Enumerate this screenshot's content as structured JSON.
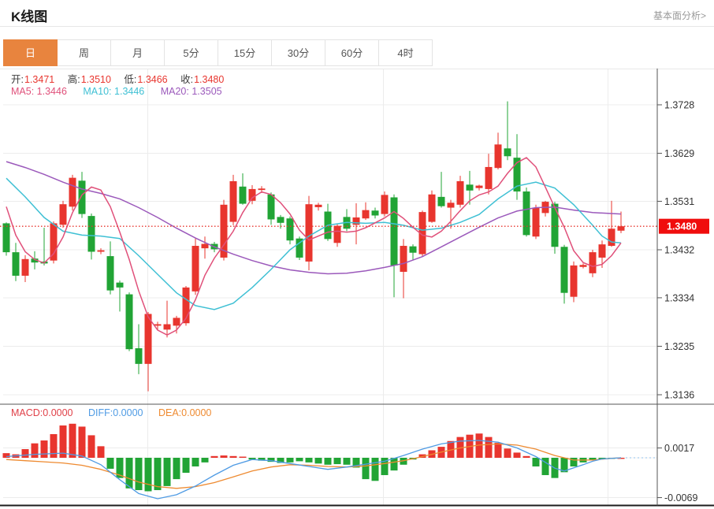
{
  "header": {
    "title": "K线图",
    "link": "基本面分析>"
  },
  "tabs": {
    "items": [
      {
        "label": "日",
        "selected": true
      },
      {
        "label": "周",
        "selected": false
      },
      {
        "label": "月",
        "selected": false
      },
      {
        "label": "5分",
        "selected": false
      },
      {
        "label": "15分",
        "selected": false
      },
      {
        "label": "30分",
        "selected": false
      },
      {
        "label": "60分",
        "selected": false
      },
      {
        "label": "4时",
        "selected": false
      }
    ]
  },
  "legend": {
    "ohlc": [
      {
        "label": "开:",
        "value": "1.3471"
      },
      {
        "label": "高:",
        "value": "1.3510"
      },
      {
        "label": "低:",
        "value": "1.3466"
      },
      {
        "label": "收:",
        "value": "1.3480"
      }
    ],
    "ma": [
      {
        "label": "MA5:",
        "value": "1.3446",
        "color": "#e0507a"
      },
      {
        "label": "MA10:",
        "value": "1.3446",
        "color": "#3fc0d4"
      },
      {
        "label": "MA20:",
        "value": "1.3505",
        "color": "#9b59bb"
      }
    ],
    "macd": [
      {
        "label": "MACD:",
        "value": "0.0000",
        "color": "#e04048"
      },
      {
        "label": "DIFF:",
        "value": "0.0000",
        "color": "#4f9be4"
      },
      {
        "label": "DEA:",
        "value": "0.0000",
        "color": "#ee8a30"
      }
    ]
  },
  "chart_data": {
    "type": "candlestick",
    "title": "K线图 (daily)",
    "legend_position": "top-left-overlay",
    "grid": true,
    "price_axis": {
      "side": "right",
      "ticks": [
        "1.3728",
        "1.3629",
        "1.3531",
        "1.3432",
        "1.3334",
        "1.3235",
        "1.3136"
      ],
      "tick_values": [
        1.3728,
        1.3629,
        1.3531,
        1.3432,
        1.3334,
        1.3235,
        1.3136
      ],
      "current_price": 1.348,
      "current_price_label": "1.3480"
    },
    "macd_axis": {
      "side": "right",
      "ticks": [
        "0.0017",
        "-0.0069"
      ],
      "tick_values": [
        0.0017,
        -0.0069
      ]
    },
    "candles": [
      [
        1.3486,
        1.3488,
        1.342,
        1.3427
      ],
      [
        1.3427,
        1.3446,
        1.3368,
        1.3379
      ],
      [
        1.3379,
        1.3421,
        1.3366,
        1.3413
      ],
      [
        1.3414,
        1.3429,
        1.3392,
        1.3406
      ],
      [
        1.3408,
        1.3477,
        1.34,
        1.3404
      ],
      [
        1.341,
        1.349,
        1.3404,
        1.3486
      ],
      [
        1.3483,
        1.3532,
        1.3477,
        1.3525
      ],
      [
        1.352,
        1.3585,
        1.3512,
        1.3579
      ],
      [
        1.3573,
        1.3591,
        1.3497,
        1.3505
      ],
      [
        1.3501,
        1.3506,
        1.3412,
        1.3428
      ],
      [
        1.3428,
        1.3435,
        1.3423,
        1.3431
      ],
      [
        1.3419,
        1.3449,
        1.3341,
        1.3349
      ],
      [
        1.3365,
        1.3369,
        1.3306,
        1.3355
      ],
      [
        1.3341,
        1.3345,
        1.3225,
        1.3229
      ],
      [
        1.3231,
        1.328,
        1.3178,
        1.3199
      ],
      [
        1.3199,
        1.3305,
        1.3143,
        1.3301
      ],
      [
        1.3277,
        1.3285,
        1.3268,
        1.328
      ],
      [
        1.3269,
        1.3328,
        1.3253,
        1.328
      ],
      [
        1.3277,
        1.3297,
        1.3261,
        1.3293
      ],
      [
        1.3282,
        1.3358,
        1.3277,
        1.3355
      ],
      [
        1.3347,
        1.3457,
        1.334,
        1.344
      ],
      [
        1.3435,
        1.3459,
        1.3414,
        1.3444
      ],
      [
        1.3444,
        1.3448,
        1.3427,
        1.3433
      ],
      [
        1.3416,
        1.3534,
        1.341,
        1.3524
      ],
      [
        1.3489,
        1.3585,
        1.3482,
        1.3572
      ],
      [
        1.3561,
        1.3588,
        1.3524,
        1.3526
      ],
      [
        1.3532,
        1.3564,
        1.3525,
        1.3556
      ],
      [
        1.3554,
        1.3562,
        1.3548,
        1.3557
      ],
      [
        1.3545,
        1.3549,
        1.3483,
        1.3494
      ],
      [
        1.3499,
        1.3503,
        1.3475,
        1.3487
      ],
      [
        1.3496,
        1.35,
        1.3443,
        1.3451
      ],
      [
        1.3455,
        1.3459,
        1.3411,
        1.3416
      ],
      [
        1.3408,
        1.3542,
        1.339,
        1.3525
      ],
      [
        1.3519,
        1.3528,
        1.3512,
        1.3524
      ],
      [
        1.351,
        1.3526,
        1.345,
        1.3454
      ],
      [
        1.3446,
        1.3485,
        1.3438,
        1.3481
      ],
      [
        1.3499,
        1.3515,
        1.347,
        1.3475
      ],
      [
        1.3483,
        1.3527,
        1.3443,
        1.3498
      ],
      [
        1.3496,
        1.3529,
        1.3493,
        1.3513
      ],
      [
        1.3512,
        1.3518,
        1.3496,
        1.3502
      ],
      [
        1.3505,
        1.3551,
        1.35,
        1.3544
      ],
      [
        1.3539,
        1.3545,
        1.3335,
        1.34
      ],
      [
        1.3387,
        1.3454,
        1.3333,
        1.344
      ],
      [
        1.3439,
        1.3443,
        1.3411,
        1.3426
      ],
      [
        1.3423,
        1.3512,
        1.3418,
        1.3509
      ],
      [
        1.3489,
        1.3553,
        1.3487,
        1.3545
      ],
      [
        1.354,
        1.3591,
        1.3518,
        1.3521
      ],
      [
        1.3518,
        1.3534,
        1.3475,
        1.3528
      ],
      [
        1.3524,
        1.3583,
        1.3518,
        1.3572
      ],
      [
        1.3565,
        1.3593,
        1.3524,
        1.3553
      ],
      [
        1.3558,
        1.3565,
        1.3553,
        1.3563
      ],
      [
        1.3556,
        1.3628,
        1.3545,
        1.3601
      ],
      [
        1.3599,
        1.3671,
        1.3596,
        1.3647
      ],
      [
        1.3639,
        1.3735,
        1.3615,
        1.3623
      ],
      [
        1.362,
        1.3668,
        1.3534,
        1.3551
      ],
      [
        1.3551,
        1.3559,
        1.3459,
        1.3462
      ],
      [
        1.3459,
        1.3524,
        1.3454,
        1.3518
      ],
      [
        1.3507,
        1.3532,
        1.35,
        1.353
      ],
      [
        1.3526,
        1.353,
        1.3424,
        1.3438
      ],
      [
        1.3438,
        1.3442,
        1.3322,
        1.3344
      ],
      [
        1.3336,
        1.3408,
        1.3325,
        1.34
      ],
      [
        1.3397,
        1.3404,
        1.3394,
        1.3401
      ],
      [
        1.3384,
        1.3432,
        1.3376,
        1.3427
      ],
      [
        1.3416,
        1.3451,
        1.3395,
        1.3443
      ],
      [
        1.344,
        1.3532,
        1.3438,
        1.3475
      ],
      [
        1.3471,
        1.351,
        1.3466,
        1.348
      ]
    ],
    "ma5_keypoints": [
      [
        0,
        1.352
      ],
      [
        1,
        1.3462
      ],
      [
        2,
        1.3428
      ],
      [
        3,
        1.3412
      ],
      [
        4,
        1.3405
      ],
      [
        5,
        1.3424
      ],
      [
        6,
        1.3458
      ],
      [
        7,
        1.3508
      ],
      [
        8,
        1.3544
      ],
      [
        9,
        1.356
      ],
      [
        10,
        1.3554
      ],
      [
        11,
        1.352
      ],
      [
        12,
        1.3468
      ],
      [
        13,
        1.3412
      ],
      [
        14,
        1.3348
      ],
      [
        15,
        1.3295
      ],
      [
        16,
        1.3268
      ],
      [
        17,
        1.3258
      ],
      [
        18,
        1.3268
      ],
      [
        19,
        1.3292
      ],
      [
        20,
        1.333
      ],
      [
        21,
        1.338
      ],
      [
        22,
        1.3415
      ],
      [
        23,
        1.3442
      ],
      [
        24,
        1.347
      ],
      [
        25,
        1.3508
      ],
      [
        26,
        1.3538
      ],
      [
        27,
        1.355
      ],
      [
        28,
        1.3545
      ],
      [
        29,
        1.3528
      ],
      [
        30,
        1.3505
      ],
      [
        31,
        1.3472
      ],
      [
        32,
        1.3452
      ],
      [
        33,
        1.346
      ],
      [
        34,
        1.3468
      ],
      [
        35,
        1.347
      ],
      [
        36,
        1.3468
      ],
      [
        37,
        1.347
      ],
      [
        38,
        1.3477
      ],
      [
        39,
        1.3487
      ],
      [
        40,
        1.3497
      ],
      [
        41,
        1.351
      ],
      [
        42,
        1.3496
      ],
      [
        43,
        1.3478
      ],
      [
        44,
        1.3462
      ],
      [
        45,
        1.3458
      ],
      [
        46,
        1.347
      ],
      [
        47,
        1.349
      ],
      [
        48,
        1.3512
      ],
      [
        49,
        1.3532
      ],
      [
        50,
        1.3544
      ],
      [
        51,
        1.355
      ],
      [
        52,
        1.3562
      ],
      [
        53,
        1.3588
      ],
      [
        54,
        1.361
      ],
      [
        55,
        1.362
      ],
      [
        56,
        1.3601
      ],
      [
        57,
        1.356
      ],
      [
        58,
        1.3518
      ],
      [
        59,
        1.3478
      ],
      [
        60,
        1.343
      ],
      [
        61,
        1.3406
      ],
      [
        62,
        1.3398
      ],
      [
        63,
        1.3402
      ],
      [
        64,
        1.342
      ],
      [
        65,
        1.3446
      ]
    ],
    "ma10_keypoints": [
      [
        0,
        1.3578
      ],
      [
        2,
        1.354
      ],
      [
        4,
        1.3498
      ],
      [
        6,
        1.347
      ],
      [
        8,
        1.3462
      ],
      [
        10,
        1.346
      ],
      [
        12,
        1.3455
      ],
      [
        14,
        1.342
      ],
      [
        16,
        1.3382
      ],
      [
        18,
        1.3344
      ],
      [
        20,
        1.3318
      ],
      [
        22,
        1.331
      ],
      [
        24,
        1.3323
      ],
      [
        26,
        1.3355
      ],
      [
        28,
        1.3392
      ],
      [
        30,
        1.3432
      ],
      [
        32,
        1.346
      ],
      [
        34,
        1.3482
      ],
      [
        36,
        1.3488
      ],
      [
        38,
        1.3486
      ],
      [
        40,
        1.3488
      ],
      [
        42,
        1.3482
      ],
      [
        44,
        1.3472
      ],
      [
        46,
        1.3476
      ],
      [
        48,
        1.3488
      ],
      [
        50,
        1.3504
      ],
      [
        52,
        1.3536
      ],
      [
        54,
        1.3562
      ],
      [
        56,
        1.357
      ],
      [
        58,
        1.3558
      ],
      [
        60,
        1.3524
      ],
      [
        62,
        1.3482
      ],
      [
        63,
        1.346
      ],
      [
        64,
        1.3448
      ],
      [
        65,
        1.3446
      ]
    ],
    "ma20_keypoints": [
      [
        0,
        1.3612
      ],
      [
        2,
        1.36
      ],
      [
        4,
        1.3586
      ],
      [
        6,
        1.357
      ],
      [
        8,
        1.3556
      ],
      [
        10,
        1.3547
      ],
      [
        12,
        1.3536
      ],
      [
        14,
        1.3518
      ],
      [
        16,
        1.3498
      ],
      [
        18,
        1.3476
      ],
      [
        20,
        1.3456
      ],
      [
        22,
        1.3438
      ],
      [
        24,
        1.3423
      ],
      [
        26,
        1.341
      ],
      [
        28,
        1.3399
      ],
      [
        30,
        1.3391
      ],
      [
        32,
        1.3386
      ],
      [
        34,
        1.3383
      ],
      [
        36,
        1.3384
      ],
      [
        38,
        1.3389
      ],
      [
        40,
        1.3396
      ],
      [
        42,
        1.3404
      ],
      [
        44,
        1.3418
      ],
      [
        46,
        1.3438
      ],
      [
        48,
        1.3458
      ],
      [
        50,
        1.3478
      ],
      [
        52,
        1.3497
      ],
      [
        54,
        1.3511
      ],
      [
        56,
        1.3518
      ],
      [
        58,
        1.3519
      ],
      [
        60,
        1.3513
      ],
      [
        62,
        1.3508
      ],
      [
        64,
        1.3506
      ],
      [
        65,
        1.3505
      ]
    ],
    "macd_hist": [
      0.0008,
      0.0006,
      0.0015,
      0.0025,
      0.003,
      0.0041,
      0.0056,
      0.0059,
      0.0054,
      0.0039,
      0.002,
      -0.0019,
      -0.0035,
      -0.0053,
      -0.0056,
      -0.0058,
      -0.0056,
      -0.0049,
      -0.0037,
      -0.0026,
      -0.0015,
      -0.0008,
      0.0003,
      0.0004,
      0.0003,
      0.0002,
      -0.0003,
      -0.0005,
      -0.0007,
      -0.0009,
      -0.0008,
      -0.0006,
      -0.0008,
      -0.001,
      -0.0012,
      -0.0011,
      -0.0012,
      -0.0017,
      -0.0037,
      -0.004,
      -0.003,
      -0.0022,
      -0.0012,
      -0.0003,
      0.0006,
      0.0013,
      0.0019,
      0.0029,
      0.0036,
      0.004,
      0.0042,
      0.0036,
      0.0026,
      0.0016,
      0.0009,
      0.0003,
      -0.0015,
      -0.003,
      -0.0035,
      -0.0025,
      -0.0015,
      -0.0008,
      -0.0004,
      -0.0002,
      -0.0001,
      0.0
    ],
    "diff_keypoints": [
      [
        0,
        0.0002
      ],
      [
        3,
        0.0006
      ],
      [
        6,
        0.0008
      ],
      [
        8,
        0.0003
      ],
      [
        10,
        -0.0012
      ],
      [
        12,
        -0.0038
      ],
      [
        14,
        -0.0062
      ],
      [
        16,
        -0.0071
      ],
      [
        18,
        -0.0064
      ],
      [
        20,
        -0.0049
      ],
      [
        22,
        -0.003
      ],
      [
        24,
        -0.0013
      ],
      [
        26,
        -0.0003
      ],
      [
        28,
        -0.0005
      ],
      [
        30,
        -0.001
      ],
      [
        32,
        -0.0015
      ],
      [
        34,
        -0.002
      ],
      [
        36,
        -0.0016
      ],
      [
        38,
        -0.0011
      ],
      [
        40,
        -0.0006
      ],
      [
        42,
        0.0004
      ],
      [
        44,
        0.0015
      ],
      [
        46,
        0.0024
      ],
      [
        48,
        0.0029
      ],
      [
        50,
        0.003
      ],
      [
        52,
        0.0027
      ],
      [
        54,
        0.0017
      ],
      [
        56,
        0.0002
      ],
      [
        58,
        -0.0018
      ],
      [
        59,
        -0.0023
      ],
      [
        61,
        -0.0012
      ],
      [
        62,
        -0.0006
      ],
      [
        63,
        -0.0002
      ],
      [
        65,
        0.0
      ]
    ],
    "dea_keypoints": [
      [
        0,
        -0.0003
      ],
      [
        2,
        -0.0005
      ],
      [
        4,
        -0.0007
      ],
      [
        6,
        -0.0009
      ],
      [
        8,
        -0.0013
      ],
      [
        10,
        -0.002
      ],
      [
        12,
        -0.003
      ],
      [
        14,
        -0.0042
      ],
      [
        16,
        -0.005
      ],
      [
        18,
        -0.0053
      ],
      [
        20,
        -0.005
      ],
      [
        22,
        -0.0043
      ],
      [
        24,
        -0.0033
      ],
      [
        26,
        -0.0023
      ],
      [
        28,
        -0.0016
      ],
      [
        30,
        -0.0012
      ],
      [
        32,
        -0.0013
      ],
      [
        34,
        -0.0015
      ],
      [
        36,
        -0.0016
      ],
      [
        38,
        -0.0014
      ],
      [
        40,
        -0.001
      ],
      [
        42,
        -0.0005
      ],
      [
        44,
        0.0002
      ],
      [
        46,
        0.001
      ],
      [
        48,
        0.0017
      ],
      [
        50,
        0.0022
      ],
      [
        52,
        0.0024
      ],
      [
        54,
        0.0022
      ],
      [
        56,
        0.0015
      ],
      [
        58,
        0.0004
      ],
      [
        60,
        -0.0004
      ],
      [
        62,
        -0.0004
      ],
      [
        64,
        -0.0001
      ],
      [
        65,
        0.0
      ]
    ],
    "colors": {
      "up": "#e8352e",
      "down": "#21a435",
      "ma5": "#e0507a",
      "ma10": "#3fc0d4",
      "ma20": "#9b59bb",
      "diff": "#4f9be4",
      "dea": "#ee8a30",
      "current_line": "#e8352e",
      "badge": "#f00d0d",
      "grid": "#ececec",
      "axis": "#555555",
      "tick_text": "#333333",
      "diff_ext": "#a8cff0"
    }
  }
}
